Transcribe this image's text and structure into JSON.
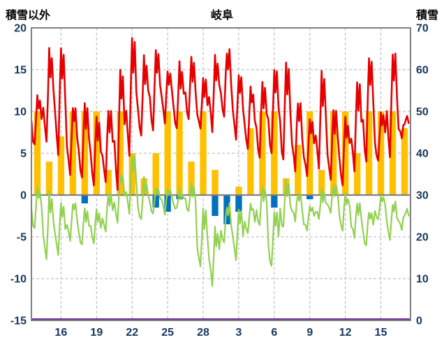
{
  "title": "岐阜",
  "left_axis": {
    "title": "積雪以外",
    "min": -15,
    "max": 20,
    "ticks": [
      "20",
      "15",
      "10",
      "5",
      "0",
      "-5",
      "-10",
      "-15"
    ],
    "tick_values": [
      20,
      15,
      10,
      5,
      0,
      -5,
      -10,
      -15
    ]
  },
  "right_axis": {
    "title": "積雪",
    "min": 0,
    "max": 70,
    "ticks": [
      "70",
      "60",
      "50",
      "40",
      "30",
      "20",
      "10",
      "0"
    ],
    "tick_values": [
      70,
      60,
      50,
      40,
      30,
      20,
      10,
      0
    ]
  },
  "x_axis": {
    "tick_labels": [
      "16",
      "19",
      "22",
      "25",
      "28",
      "3",
      "6",
      "9",
      "12",
      "15"
    ],
    "tick_days": [
      2,
      5,
      8,
      11,
      14,
      17,
      20,
      23,
      26,
      29
    ],
    "domain": [
      0,
      32
    ]
  },
  "colors": {
    "temperature": "#e60000",
    "green_series": "#92d050",
    "sunshine": "#ffc000",
    "precipitation": "#0070c0",
    "snow": "#7030a0",
    "grid": "#b3b3b3",
    "zero_line": "#808080",
    "border": "#7f7f7f",
    "label": "#17375e",
    "title": "#000000"
  },
  "chart_data": {
    "type": "line",
    "title": "岐阜",
    "days": 32,
    "grid": true,
    "left_axis_range": [
      -15,
      20
    ],
    "right_axis_range": [
      0,
      70
    ],
    "series": [
      {
        "name": "temperature",
        "kind": "line",
        "axis": "left",
        "color_key": "temperature",
        "daily_min": [
          6,
          6,
          5,
          3,
          2,
          1.5,
          2,
          1,
          5,
          7,
          8,
          9,
          8,
          9,
          8,
          8,
          9,
          7,
          5,
          4,
          5,
          4,
          3,
          2,
          3,
          2,
          1.5,
          3,
          4,
          4,
          5,
          7
        ],
        "daily_max": [
          12,
          17,
          17.5,
          10.5,
          10.5,
          9,
          10,
          15.5,
          19,
          16.5,
          17.5,
          14.5,
          15.5,
          16,
          13.5,
          16.5,
          17.5,
          14,
          13,
          13.5,
          15,
          15.5,
          11,
          9.5,
          14.5,
          10,
          9,
          13.5,
          16.5,
          10,
          17,
          9
        ]
      },
      {
        "name": "secondary-temperature",
        "kind": "line",
        "axis": "left",
        "color_key": "green_series",
        "daily_min": [
          -4,
          -8,
          -7,
          -5,
          -6,
          -5.5,
          -4,
          -3,
          -2,
          -3,
          -2,
          -2,
          -1.5,
          -2,
          -8.5,
          -10.5,
          -6,
          -7.5,
          -5,
          -4,
          -8.5,
          -4,
          -3,
          -4.5,
          -3,
          -2,
          -4,
          -5,
          -6,
          -3,
          -5,
          -4
        ],
        "daily_max": [
          1,
          0,
          -1,
          -1,
          -2,
          -2,
          0,
          3,
          5,
          2,
          1,
          0.5,
          0.5,
          1,
          -2,
          -4,
          -1,
          -2,
          -1,
          1,
          -2,
          1.5,
          0,
          -1,
          0.5,
          1,
          0,
          -1,
          -2,
          0,
          -1,
          -2
        ]
      },
      {
        "name": "sunshine",
        "kind": "bar",
        "axis": "left",
        "color_key": "sunshine",
        "values": [
          10,
          4,
          7,
          10,
          10,
          10,
          3,
          10,
          5,
          2,
          5,
          10,
          10,
          4,
          10,
          3,
          0,
          1,
          8,
          10,
          10,
          2,
          6,
          10,
          3,
          10,
          10,
          5,
          10,
          10,
          10,
          8
        ]
      },
      {
        "name": "precipitation",
        "kind": "bar-down",
        "axis": "left",
        "color_key": "precipitation",
        "values": [
          0,
          0,
          0,
          0,
          1,
          0,
          0,
          0,
          0,
          0,
          1.5,
          2,
          0.5,
          0,
          0,
          2.5,
          3.5,
          2,
          0,
          0,
          1.5,
          0,
          0,
          0.5,
          0,
          0,
          0,
          0,
          0,
          0,
          0,
          0
        ]
      },
      {
        "name": "snow-depth",
        "kind": "line",
        "axis": "right",
        "color_key": "snow",
        "constant": 0
      }
    ]
  }
}
